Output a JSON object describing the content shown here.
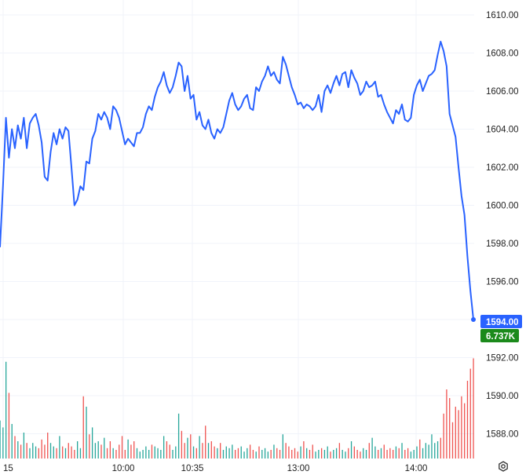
{
  "chart_data": {
    "type": "line",
    "title": "",
    "xlabel": "",
    "ylabel": "",
    "y_axis_position": "right",
    "grid": true,
    "ylim": [
      1587.2,
      1611.0
    ],
    "y_ticks": [
      "1588.00",
      "1590.00",
      "1592.00",
      "1594.00",
      "1596.00",
      "1598.00",
      "1600.00",
      "1602.00",
      "1604.00",
      "1606.00",
      "1608.00",
      "1610.00"
    ],
    "x_tick_labels": [
      "15",
      "10:00",
      "10:35",
      "13:00",
      "14:00"
    ],
    "series": [
      {
        "color": "#2962ff",
        "values": [
          1597.8,
          1601.0,
          1604.6,
          1602.5,
          1604.0,
          1603.0,
          1604.2,
          1603.5,
          1604.6,
          1603.0,
          1604.3,
          1604.6,
          1604.8,
          1604.2,
          1603.3,
          1601.5,
          1601.3,
          1602.8,
          1603.8,
          1603.2,
          1604.0,
          1603.5,
          1604.1,
          1603.9,
          1602.0,
          1600.0,
          1600.3,
          1601.0,
          1600.8,
          1602.3,
          1602.2,
          1603.5,
          1603.9,
          1604.8,
          1604.5,
          1604.9,
          1604.6,
          1604.0,
          1605.2,
          1605.0,
          1604.6,
          1603.9,
          1603.2,
          1603.5,
          1603.3,
          1603.1,
          1603.8,
          1603.8,
          1604.1,
          1604.8,
          1605.2,
          1605.0,
          1605.7,
          1606.2,
          1606.5,
          1607.0,
          1606.3,
          1605.9,
          1606.2,
          1606.8,
          1607.5,
          1607.3,
          1606.0,
          1606.8,
          1605.6,
          1605.8,
          1604.5,
          1604.9,
          1604.2,
          1604.0,
          1604.5,
          1603.8,
          1603.5,
          1604.0,
          1603.8,
          1604.1,
          1604.8,
          1605.5,
          1605.9,
          1605.3,
          1605.0,
          1605.2,
          1605.6,
          1605.8,
          1605.1,
          1605.0,
          1606.2,
          1606.0,
          1606.5,
          1606.8,
          1607.3,
          1606.8,
          1607.0,
          1606.6,
          1606.4,
          1607.8,
          1607.4,
          1606.8,
          1606.2,
          1605.8,
          1605.3,
          1605.4,
          1605.1,
          1605.3,
          1605.2,
          1605.0,
          1605.2,
          1605.8,
          1604.9,
          1606.0,
          1606.3,
          1605.9,
          1606.4,
          1606.8,
          1606.3,
          1606.9,
          1607.0,
          1606.2,
          1607.1,
          1606.7,
          1606.4,
          1605.8,
          1606.0,
          1606.5,
          1606.2,
          1606.3,
          1606.5,
          1605.7,
          1605.8,
          1605.3,
          1604.9,
          1604.6,
          1604.3,
          1605.0,
          1604.8,
          1605.3,
          1604.5,
          1604.4,
          1604.6,
          1605.8,
          1606.3,
          1606.6,
          1606.0,
          1606.4,
          1606.8,
          1606.9,
          1607.1,
          1607.9,
          1608.6,
          1608.1,
          1607.3,
          1604.8,
          1604.2,
          1603.6,
          1602.0,
          1600.5,
          1599.5,
          1597.3,
          1595.5,
          1594.0
        ],
        "volumes": [
          2.2,
          1.8,
          5.6,
          3.8,
          2.0,
          1.3,
          1.0,
          0.8,
          1.5,
          0.9,
          0.6,
          0.9,
          0.7,
          0.6,
          1.1,
          0.8,
          1.5,
          0.9,
          0.7,
          0.6,
          1.3,
          0.7,
          0.6,
          0.9,
          0.7,
          0.5,
          1.0,
          0.6,
          3.6,
          3.0,
          1.4,
          1.8,
          0.9,
          1.0,
          0.8,
          1.2,
          0.6,
          1.0,
          0.6,
          0.5,
          0.8,
          1.3,
          0.5,
          1.1,
          0.8,
          1.0,
          0.6,
          0.4,
          0.5,
          0.7,
          0.5,
          0.8,
          0.7,
          0.6,
          0.5,
          1.3,
          1.0,
          0.8,
          0.5,
          0.7,
          2.6,
          1.6,
          0.9,
          1.2,
          1.4,
          0.7,
          0.6,
          1.3,
          0.9,
          1.9,
          0.9,
          1.0,
          0.7,
          0.6,
          0.9,
          0.5,
          0.7,
          0.6,
          0.8,
          0.5,
          0.6,
          0.7,
          0.4,
          0.6,
          0.8,
          0.5,
          0.4,
          0.7,
          0.5,
          0.6,
          0.4,
          0.5,
          0.8,
          0.6,
          0.5,
          1.4,
          0.9,
          0.7,
          0.5,
          0.6,
          0.4,
          0.7,
          1.0,
          0.6,
          0.5,
          0.8,
          0.4,
          0.5,
          0.6,
          0.5,
          0.7,
          0.4,
          0.5,
          0.6,
          0.9,
          0.5,
          0.4,
          0.6,
          1.0,
          0.7,
          0.5,
          0.4,
          0.6,
          0.5,
          0.9,
          1.2,
          0.7,
          0.5,
          0.6,
          0.8,
          0.5,
          0.6,
          0.5,
          0.7,
          0.6,
          0.9,
          0.5,
          0.6,
          0.4,
          0.5,
          0.7,
          1.1,
          0.6,
          0.9,
          0.8,
          1.4,
          0.9,
          1.0,
          1.2,
          2.6,
          4.0,
          3.5,
          2.1,
          3.0,
          2.8,
          3.6,
          3.2,
          4.5,
          5.2,
          5.8
        ],
        "volume_direction": [
          "up",
          "up",
          "up",
          "down",
          "up",
          "down",
          "up",
          "down",
          "up",
          "down",
          "up",
          "up",
          "up",
          "down",
          "down",
          "down",
          "down",
          "up",
          "up",
          "down",
          "up",
          "down",
          "up",
          "down",
          "down",
          "down",
          "up",
          "up",
          "down",
          "up",
          "down",
          "up",
          "up",
          "up",
          "down",
          "up",
          "down",
          "down",
          "up",
          "down",
          "down",
          "down",
          "down",
          "up",
          "down",
          "down",
          "up",
          "up",
          "up",
          "up",
          "up",
          "down",
          "up",
          "up",
          "up",
          "up",
          "down",
          "down",
          "up",
          "up",
          "up",
          "down",
          "down",
          "up",
          "down",
          "up",
          "down",
          "up",
          "down",
          "down",
          "up",
          "down",
          "down",
          "up",
          "down",
          "up",
          "up",
          "up",
          "up",
          "down",
          "down",
          "up",
          "up",
          "up",
          "down",
          "down",
          "up",
          "down",
          "up",
          "up",
          "up",
          "down",
          "up",
          "down",
          "down",
          "up",
          "down",
          "down",
          "down",
          "down",
          "down",
          "up",
          "down",
          "up",
          "down",
          "down",
          "up",
          "up",
          "down",
          "up",
          "up",
          "down",
          "up",
          "up",
          "down",
          "up",
          "up",
          "down",
          "up",
          "down",
          "down",
          "down",
          "up",
          "up",
          "down",
          "up",
          "up",
          "down",
          "up",
          "down",
          "down",
          "down",
          "down",
          "up",
          "down",
          "up",
          "down",
          "down",
          "up",
          "up",
          "up",
          "down",
          "up",
          "up",
          "up",
          "up",
          "up",
          "up",
          "down",
          "down",
          "down",
          "down",
          "down",
          "down",
          "down",
          "down",
          "down",
          "down"
        ]
      }
    ],
    "up_color": "#26a69a",
    "down_color": "#ef5350",
    "last_price_label": "1594.00",
    "last_volume_label": "6.737K",
    "price_badge_color": "#2962ff",
    "volume_badge_color": "#1b8a1b"
  },
  "settings_icon": "gear-icon"
}
